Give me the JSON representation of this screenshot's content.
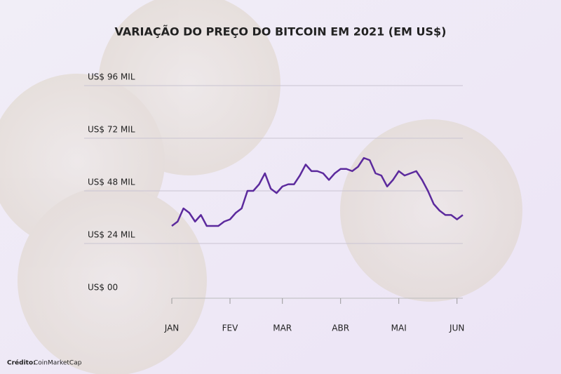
{
  "chart_data": {
    "type": "line",
    "title": "VARIAÇÃO DO PREÇO DO BITCOIN EM 2021 (EM US$)",
    "categories": [
      "JAN",
      null,
      null,
      null,
      null,
      null,
      null,
      null,
      null,
      null,
      "FEV",
      null,
      null,
      null,
      null,
      null,
      null,
      null,
      null,
      "MAR",
      null,
      null,
      null,
      null,
      null,
      null,
      null,
      null,
      null,
      "ABR",
      null,
      null,
      null,
      null,
      null,
      null,
      null,
      null,
      null,
      "MAI",
      null,
      null,
      null,
      null,
      null,
      null,
      null,
      null,
      null,
      "JUN",
      null
    ],
    "series": [
      {
        "color": "#5c2a9d",
        "values": [
          32,
          34,
          40,
          38,
          34,
          37,
          32,
          32,
          32,
          34,
          35,
          38,
          40,
          48,
          48,
          51,
          56,
          49,
          47,
          50,
          51,
          51,
          55,
          60,
          57,
          57,
          56,
          53,
          56,
          58,
          58,
          57,
          59,
          63,
          62,
          56,
          55,
          50,
          53,
          57,
          55,
          56,
          57,
          53,
          48,
          42,
          39,
          37,
          37,
          35,
          37
        ]
      }
    ],
    "ylim": [
      0,
      96
    ],
    "yticks": [
      {
        "value": 0,
        "label": "US$ 00"
      },
      {
        "value": 24,
        "label": "US$ 24 MIL"
      },
      {
        "value": 48,
        "label": "US$ 48 MIL"
      },
      {
        "value": 72,
        "label": "US$ 72 MIL"
      },
      {
        "value": 96,
        "label": "US$ 96 MIL"
      }
    ],
    "grid": true,
    "credit_label": "Crédito:",
    "source": "CoinMarketCap"
  }
}
